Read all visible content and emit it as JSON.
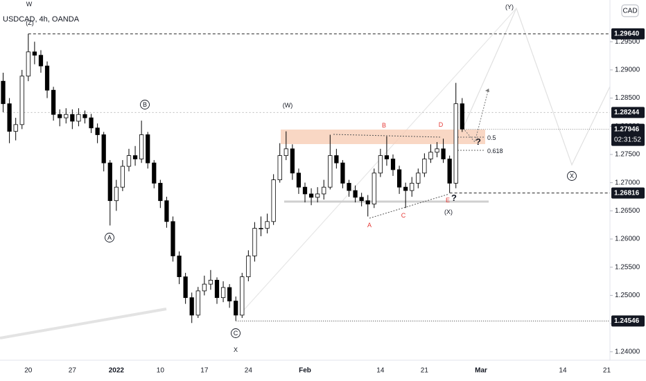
{
  "chart_data": {
    "type": "candlestick",
    "title": "USDCAD, 4h, OANDA",
    "currency": "CAD",
    "timer": "02:31:52",
    "grid": false,
    "up_color": "#ffffff",
    "down_color": "#000000",
    "categories": [
      null,
      null,
      null,
      null,
      "20",
      null,
      null,
      null,
      null,
      null,
      null,
      "27",
      null,
      null,
      null,
      null,
      null,
      null,
      "2022",
      null,
      null,
      null,
      null,
      null,
      null,
      "10",
      null,
      null,
      null,
      null,
      null,
      null,
      "17",
      null,
      null,
      null,
      null,
      null,
      null,
      "24",
      null,
      null,
      null,
      null,
      null,
      null,
      null,
      null,
      "Feb",
      null,
      null,
      null,
      null,
      null,
      null,
      null,
      null,
      null,
      null,
      null,
      "14",
      null,
      null,
      null,
      null,
      null,
      null,
      "21",
      null,
      null,
      null,
      null,
      null,
      null,
      null,
      null,
      "Mar",
      null,
      null,
      null,
      null,
      null,
      null,
      null,
      null,
      null,
      null,
      null,
      null,
      "14",
      null,
      null,
      null,
      null,
      null,
      null,
      "21"
    ],
    "open": [
      1.288,
      1.284,
      1.2791,
      1.2803,
      1.2889,
      1.2932,
      1.2926,
      1.2907,
      1.2864,
      1.2821,
      1.2815,
      1.2821,
      1.2809,
      1.2821,
      1.2815,
      1.2797,
      1.2785,
      1.2735,
      1.2668,
      1.2692,
      1.2729,
      1.2748,
      1.2742,
      1.2785,
      1.2735,
      1.2699,
      1.2668,
      1.2631,
      1.257,
      1.2533,
      1.2496,
      1.2465,
      1.2508,
      1.252,
      1.2527,
      1.2496,
      1.2514,
      1.249,
      1.2465,
      1.2533,
      1.257,
      1.2619,
      1.2619,
      1.2631,
      1.2705,
      1.2748,
      1.276,
      1.2717,
      1.2692,
      1.268,
      1.2674,
      1.268,
      1.2692,
      1.2748,
      1.2735,
      1.2699,
      1.2686,
      1.2674,
      1.2668,
      1.2662,
      1.2717,
      1.2748,
      1.2742,
      1.2723,
      1.2692,
      1.2686,
      1.2699,
      1.2717,
      1.2742,
      1.2754,
      1.276,
      1.2742,
      1.2699,
      1.284,
      null,
      null,
      null,
      null,
      null,
      null,
      null,
      null,
      null,
      null,
      null,
      null,
      null,
      null,
      null,
      null,
      null,
      null,
      null,
      null,
      null,
      null,
      null
    ],
    "high": [
      1.2895,
      1.285,
      1.2815,
      1.29,
      1.2964,
      1.295,
      1.2935,
      1.2915,
      1.287,
      1.283,
      1.2832,
      1.283,
      1.2832,
      1.2828,
      1.2822,
      1.2805,
      1.279,
      1.274,
      1.2705,
      1.274,
      1.276,
      1.2765,
      1.281,
      1.279,
      1.274,
      1.2705,
      1.2675,
      1.264,
      1.2578,
      1.254,
      1.2505,
      1.2515,
      1.2535,
      1.2545,
      1.2532,
      1.2525,
      1.252,
      1.2498,
      1.254,
      1.258,
      1.263,
      1.264,
      1.2645,
      1.2715,
      1.277,
      1.2791,
      1.2768,
      1.2725,
      1.27,
      1.269,
      1.2692,
      1.2705,
      1.2785,
      1.276,
      1.274,
      1.2705,
      1.2695,
      1.2682,
      1.2678,
      1.2725,
      1.276,
      1.2782,
      1.275,
      1.273,
      1.27,
      1.271,
      1.2725,
      1.2752,
      1.2768,
      1.2772,
      1.2778,
      1.2748,
      1.2877,
      1.285,
      null,
      null,
      null,
      null,
      null,
      null,
      null,
      null,
      null,
      null,
      null,
      null,
      null,
      null,
      null,
      null,
      null,
      null,
      null,
      null,
      null,
      null,
      null
    ],
    "low": [
      1.2825,
      1.277,
      1.2775,
      1.2795,
      1.288,
      1.291,
      1.2895,
      1.285,
      1.281,
      1.28,
      1.2805,
      1.2795,
      1.28,
      1.2805,
      1.2788,
      1.277,
      1.272,
      1.2624,
      1.265,
      1.2685,
      1.272,
      1.273,
      1.2735,
      1.2725,
      1.269,
      1.2655,
      1.262,
      1.256,
      1.252,
      1.2485,
      1.2451,
      1.246,
      1.25,
      1.251,
      1.2485,
      1.2488,
      1.2478,
      1.2455,
      1.246,
      1.2525,
      1.256,
      1.2605,
      1.261,
      1.2625,
      1.27,
      1.274,
      1.2705,
      1.268,
      1.2665,
      1.266,
      1.2665,
      1.267,
      1.2688,
      1.2725,
      1.269,
      1.2675,
      1.2665,
      1.2658,
      1.264,
      1.2655,
      1.271,
      1.273,
      1.2712,
      1.268,
      1.2655,
      1.2675,
      1.269,
      1.271,
      1.2735,
      1.2745,
      1.2735,
      1.2682,
      1.269,
      1.279,
      null,
      null,
      null,
      null,
      null,
      null,
      null,
      null,
      null,
      null,
      null,
      null,
      null,
      null,
      null,
      null,
      null,
      null,
      null,
      null,
      null,
      null,
      null
    ],
    "close": [
      1.284,
      1.2791,
      1.2803,
      1.2889,
      1.2932,
      1.2926,
      1.2907,
      1.2864,
      1.2821,
      1.2815,
      1.2821,
      1.2809,
      1.2821,
      1.2815,
      1.2797,
      1.2785,
      1.2735,
      1.2668,
      1.2692,
      1.2729,
      1.2748,
      1.2742,
      1.2785,
      1.2735,
      1.2699,
      1.2668,
      1.2631,
      1.257,
      1.2533,
      1.2496,
      1.2465,
      1.2508,
      1.252,
      1.2527,
      1.2496,
      1.2514,
      1.249,
      1.2465,
      1.2533,
      1.257,
      1.2619,
      1.2619,
      1.2631,
      1.2705,
      1.2748,
      1.276,
      1.2717,
      1.2692,
      1.268,
      1.2674,
      1.268,
      1.2692,
      1.2748,
      1.2735,
      1.2699,
      1.2686,
      1.2674,
      1.2668,
      1.2662,
      1.2717,
      1.2748,
      1.2742,
      1.2723,
      1.2692,
      1.2686,
      1.2699,
      1.2717,
      1.2742,
      1.2754,
      1.276,
      1.2742,
      1.2699,
      1.284,
      1.2795,
      null,
      null,
      null,
      null,
      null,
      null,
      null,
      null,
      null,
      null,
      null,
      null,
      null,
      null,
      null,
      null,
      null,
      null,
      null,
      null,
      null,
      null,
      null
    ],
    "ylim": [
      1.2385,
      1.3024
    ],
    "yticks": [
      {
        "value": 1.24,
        "label": "1.24000"
      },
      {
        "value": 1.245,
        "label": "1.24500"
      },
      {
        "value": 1.25,
        "label": "1.25000"
      },
      {
        "value": 1.255,
        "label": "1.25500"
      },
      {
        "value": 1.26,
        "label": "1.26000"
      },
      {
        "value": 1.265,
        "label": "1.26500"
      },
      {
        "value": 1.27,
        "label": "1.27000"
      },
      {
        "value": 1.275,
        "label": "1.27500"
      },
      {
        "value": 1.28,
        "label": "1.28000"
      },
      {
        "value": 1.285,
        "label": "1.28500"
      },
      {
        "value": 1.29,
        "label": "1.29000"
      },
      {
        "value": 1.295,
        "label": "1.29500"
      }
    ],
    "price_labels": [
      {
        "value": 1.2964,
        "label": "1.29640"
      },
      {
        "value": 1.28244,
        "label": "1.28244"
      },
      {
        "value": 1.27946,
        "label": "1.27946"
      },
      {
        "value": 1.26816,
        "label": "1.26816"
      },
      {
        "value": 1.24546,
        "label": "1.24546"
      }
    ],
    "annotations": [
      "W",
      "(Z)",
      "A",
      "B",
      "C",
      "X",
      "(W)",
      "A",
      "B",
      "C",
      "D",
      "E",
      "(X)",
      "?",
      "?",
      "(Y)",
      "X",
      "0.5",
      "0.618"
    ]
  }
}
